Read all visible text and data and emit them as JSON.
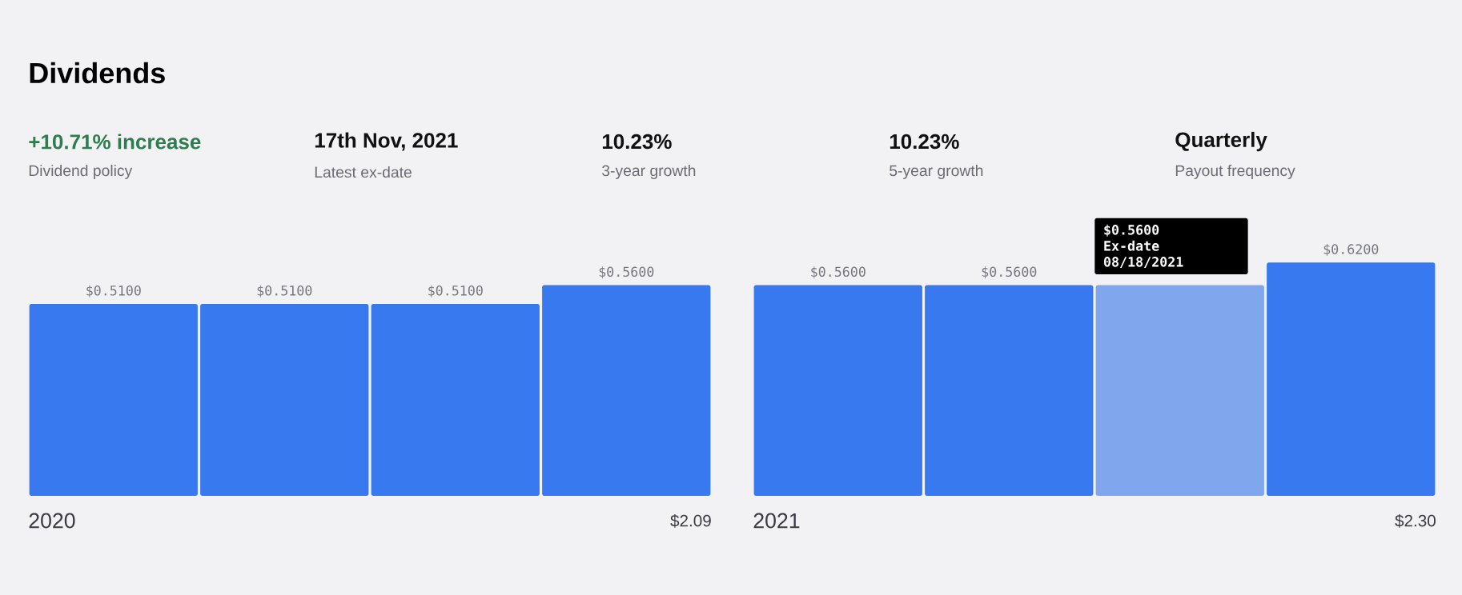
{
  "chart_data": [
    {
      "type": "other",
      "title": "Dividends",
      "annotations": [
        "+10.71% increase",
        "Dividend policy",
        "17th Nov, 2021",
        "Latest ex-date",
        "10.23%",
        "3-year growth",
        "10.23%",
        "5-year growth",
        "Quarterly",
        "Payout frequency"
      ]
    },
    {
      "type": "bar",
      "xlabel": "2020",
      "categories": [
        null,
        null,
        null,
        null
      ],
      "values": [
        0.51,
        0.51,
        0.51,
        0.56
      ],
      "value_labels": [
        "$0.5100",
        "$0.5100",
        "$0.5100",
        "$0.5600"
      ],
      "colors": [
        "#3879f0",
        "#3879f0",
        "#3879f0",
        "#3879f0"
      ],
      "annotations": [
        "$2.09"
      ]
    },
    {
      "type": "bar",
      "xlabel": "2021",
      "categories": [
        null,
        null,
        null,
        null
      ],
      "values": [
        0.56,
        0.56,
        0.56,
        0.62
      ],
      "value_labels": [
        "$0.5600",
        "$0.5600",
        null,
        "$0.6200"
      ],
      "colors": [
        "#3879f0",
        "#3879f0",
        "#80a6ee",
        "#3879f0"
      ],
      "annotations": [
        "$2.30",
        "$0.5600",
        "Ex-date",
        "08/18/2021"
      ]
    }
  ]
}
